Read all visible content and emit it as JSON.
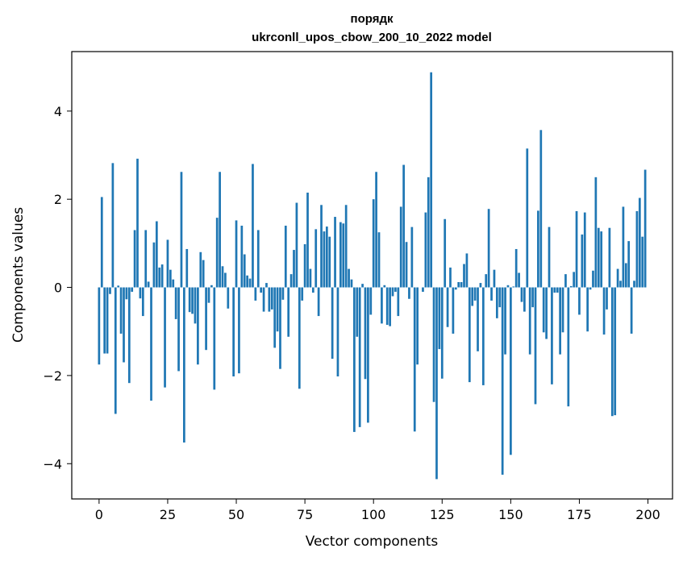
{
  "chart_data": {
    "type": "bar",
    "title": "порядк",
    "subtitle": "ukrconll_upos_cbow_200_10_2022 model",
    "xlabel": "Vector components",
    "ylabel": "Components values",
    "xlim": [
      -9.95,
      208.95
    ],
    "ylim": [
      -4.8,
      5.35
    ],
    "xticks": [
      0,
      25,
      50,
      75,
      100,
      125,
      150,
      175,
      200
    ],
    "yticks": [
      -4,
      -2,
      0,
      2,
      4
    ],
    "xtick_labels": [
      "0",
      "25",
      "50",
      "75",
      "100",
      "125",
      "150",
      "175",
      "200"
    ],
    "ytick_labels": [
      "−4",
      "−2",
      "0",
      "2",
      "4"
    ],
    "grid": false,
    "bar_color": "#1f77b4",
    "x": [
      0,
      1,
      2,
      3,
      4,
      5,
      6,
      7,
      8,
      9,
      10,
      11,
      12,
      13,
      14,
      15,
      16,
      17,
      18,
      19,
      20,
      21,
      22,
      23,
      24,
      25,
      26,
      27,
      28,
      29,
      30,
      31,
      32,
      33,
      34,
      35,
      36,
      37,
      38,
      39,
      40,
      41,
      42,
      43,
      44,
      45,
      46,
      47,
      48,
      49,
      50,
      51,
      52,
      53,
      54,
      55,
      56,
      57,
      58,
      59,
      60,
      61,
      62,
      63,
      64,
      65,
      66,
      67,
      68,
      69,
      70,
      71,
      72,
      73,
      74,
      75,
      76,
      77,
      78,
      79,
      80,
      81,
      82,
      83,
      84,
      85,
      86,
      87,
      88,
      89,
      90,
      91,
      92,
      93,
      94,
      95,
      96,
      97,
      98,
      99,
      100,
      101,
      102,
      103,
      104,
      105,
      106,
      107,
      108,
      109,
      110,
      111,
      112,
      113,
      114,
      115,
      116,
      117,
      118,
      119,
      120,
      121,
      122,
      123,
      124,
      125,
      126,
      127,
      128,
      129,
      130,
      131,
      132,
      133,
      134,
      135,
      136,
      137,
      138,
      139,
      140,
      141,
      142,
      143,
      144,
      145,
      146,
      147,
      148,
      149,
      150,
      151,
      152,
      153,
      154,
      155,
      156,
      157,
      158,
      159,
      160,
      161,
      162,
      163,
      164,
      165,
      166,
      167,
      168,
      169,
      170,
      171,
      172,
      173,
      174,
      175,
      176,
      177,
      178,
      179,
      180,
      181,
      182,
      183,
      184,
      185,
      186,
      187,
      188,
      189,
      190,
      191,
      192,
      193,
      194,
      195,
      196,
      197,
      198,
      199
    ],
    "values": [
      -1.75,
      2.05,
      -1.5,
      -1.5,
      -0.15,
      2.82,
      -2.87,
      0.04,
      -1.05,
      -1.7,
      -0.27,
      -2.17,
      -0.1,
      1.3,
      2.92,
      -0.25,
      -0.65,
      1.3,
      0.13,
      -2.57,
      1.02,
      1.5,
      0.45,
      0.52,
      -2.27,
      1.08,
      0.4,
      0.18,
      -0.72,
      -1.9,
      2.62,
      -3.52,
      0.87,
      -0.56,
      -0.6,
      -0.82,
      -1.75,
      0.8,
      0.62,
      -1.42,
      -0.35,
      0.05,
      -2.32,
      1.58,
      2.62,
      0.48,
      0.33,
      -0.48,
      0.0,
      -2.02,
      1.52,
      -1.95,
      1.4,
      0.75,
      0.27,
      0.2,
      2.8,
      -0.3,
      1.3,
      -0.12,
      -0.55,
      0.1,
      -0.55,
      -0.5,
      -1.37,
      -1.0,
      -1.85,
      -0.28,
      1.4,
      -1.12,
      0.3,
      0.85,
      1.92,
      -2.3,
      -0.3,
      0.98,
      2.15,
      0.42,
      -0.12,
      1.32,
      -0.65,
      1.87,
      1.27,
      1.38,
      1.15,
      -1.62,
      1.6,
      -2.02,
      1.48,
      1.45,
      1.87,
      0.42,
      0.18,
      -3.28,
      -1.12,
      -3.17,
      0.08,
      -2.08,
      -3.07,
      -0.62,
      2.0,
      2.62,
      1.25,
      -0.82,
      0.05,
      -0.85,
      -0.88,
      -0.2,
      -0.1,
      -0.65,
      1.83,
      2.78,
      1.03,
      -0.26,
      1.37,
      -3.27,
      -1.75,
      0.0,
      -0.1,
      1.7,
      2.5,
      4.88,
      -2.6,
      -4.35,
      -1.4,
      -2.07,
      1.55,
      -0.9,
      0.45,
      -1.05,
      -0.05,
      0.12,
      0.12,
      0.53,
      0.77,
      -2.15,
      -0.42,
      -0.3,
      -1.45,
      0.1,
      -2.22,
      0.3,
      1.78,
      -0.3,
      0.4,
      -0.7,
      -0.45,
      -4.25,
      -1.52,
      0.05,
      -3.8,
      0.02,
      0.87,
      0.33,
      -0.33,
      -0.55,
      3.15,
      -1.52,
      -0.45,
      -2.65,
      1.74,
      3.57,
      -1.02,
      -1.17,
      1.37,
      -2.2,
      -0.12,
      -0.12,
      -1.52,
      -1.02,
      0.3,
      -2.7,
      0.03,
      0.35,
      1.73,
      -0.62,
      1.2,
      1.7,
      -1.0,
      -0.05,
      0.38,
      2.5,
      1.35,
      1.27,
      -1.07,
      -0.5,
      1.35,
      -2.92,
      -2.9,
      0.42,
      0.15,
      1.83,
      0.55,
      1.05,
      -1.05,
      0.15,
      1.73,
      2.03,
      1.15,
      2.67
    ]
  }
}
